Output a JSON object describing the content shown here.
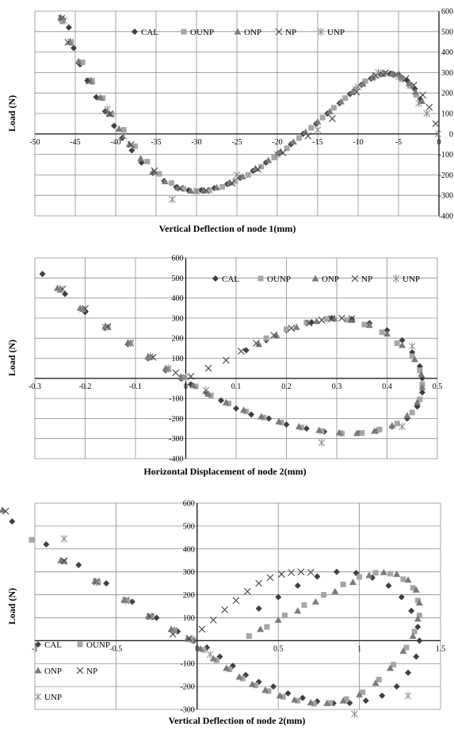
{
  "chart_data": [
    {
      "type": "scatter",
      "xlabel": "Vertical Deflection of node 1(mm)",
      "ylabel": "Load (N)",
      "xlim": [
        -50,
        0
      ],
      "ylim": [
        -400,
        600
      ],
      "x_ticks": [
        -50,
        -45,
        -40,
        -35,
        -30,
        -25,
        -20,
        -15,
        -10,
        -5,
        0
      ],
      "y_ticks": [
        -400,
        -300,
        -200,
        -100,
        0,
        100,
        200,
        300,
        400,
        500,
        600
      ],
      "grid": true,
      "legend_position": "top",
      "series": [
        {
          "name": "CAL",
          "marker": "diamond",
          "x": [
            -46.5,
            -45.8,
            -45.2,
            -44.4,
            -43.5,
            -42.4,
            -41.3,
            -40.2,
            -39.2,
            -38.0,
            -36.8,
            -35.4,
            -34.0,
            -32.5,
            -31.0,
            -29.4,
            -27.8,
            -26.2,
            -24.6,
            -23.0,
            -21.4,
            -19.9,
            -18.3,
            -16.8,
            -15.2,
            -13.8,
            -12.3,
            -11.0,
            -9.6,
            -8.4,
            -7.2,
            -6.0,
            -4.9,
            -3.9,
            -3.0,
            -2.3
          ],
          "y": [
            560,
            520,
            420,
            340,
            260,
            180,
            110,
            40,
            -20,
            -80,
            -140,
            -190,
            -230,
            -260,
            -275,
            -275,
            -265,
            -245,
            -215,
            -180,
            -140,
            -95,
            -50,
            0,
            50,
            100,
            150,
            195,
            240,
            270,
            290,
            295,
            285,
            260,
            220,
            170
          ]
        },
        {
          "name": "OUNP",
          "marker": "square",
          "x": [
            -46.6,
            -45.5,
            -44.1,
            -42.9,
            -41.6,
            -40.5,
            -39.0,
            -37.6,
            -36.1,
            -34.6,
            -33.1,
            -31.6,
            -30.0,
            -28.4,
            -26.8,
            -25.2,
            -23.6,
            -22.0,
            -20.4,
            -18.8,
            -17.3,
            -15.8,
            -14.4,
            -13.0,
            -11.6,
            -10.3,
            -9.1,
            -8.0,
            -6.8,
            -5.6,
            -4.6,
            -3.6,
            -2.8
          ],
          "y": [
            550,
            445,
            350,
            255,
            175,
            95,
            20,
            -60,
            -135,
            -195,
            -240,
            -268,
            -280,
            -275,
            -258,
            -230,
            -200,
            -160,
            -115,
            -70,
            -20,
            30,
            80,
            128,
            175,
            220,
            258,
            282,
            296,
            290,
            268,
            235,
            190
          ]
        },
        {
          "name": "ONP",
          "marker": "triangle",
          "x": [
            -46.8,
            -45.7,
            -44.6,
            -43.2,
            -41.9,
            -40.8,
            -39.6,
            -38.3,
            -36.9,
            -35.4,
            -33.9,
            -32.3,
            -30.7,
            -29.1,
            -27.5,
            -25.9,
            -24.3,
            -22.7,
            -21.1,
            -19.6,
            -18.0,
            -16.5,
            -15.0,
            -13.5,
            -12.1,
            -10.7,
            -9.4,
            -8.2,
            -7.0,
            -5.8,
            -4.7,
            -3.7,
            -2.9,
            -2.1
          ],
          "y": [
            570,
            450,
            355,
            260,
            178,
            100,
            25,
            -50,
            -120,
            -185,
            -232,
            -262,
            -278,
            -277,
            -262,
            -238,
            -208,
            -170,
            -128,
            -85,
            -38,
            10,
            60,
            110,
            158,
            205,
            245,
            275,
            292,
            295,
            278,
            248,
            205,
            160
          ]
        },
        {
          "name": "NP",
          "marker": "x",
          "x": [
            -46.7,
            -45.9,
            -43.3,
            -40.7,
            -38.1,
            -35.2,
            -32.0,
            -28.8,
            -25.6,
            -22.4,
            -19.3,
            -16.2,
            -13.2,
            -10.2,
            -7.8,
            -6.6,
            -5.3,
            -4.1,
            -3.1,
            -2.0,
            -1.2,
            -0.4
          ],
          "y": [
            565,
            448,
            258,
            98,
            -52,
            -180,
            -265,
            -276,
            -240,
            -172,
            -92,
            -10,
            75,
            205,
            285,
            298,
            290,
            270,
            238,
            190,
            130,
            50
          ]
        },
        {
          "name": "UNP",
          "marker": "asterisk",
          "x": [
            -46.4,
            -45.6,
            -43.0,
            -41.0,
            -39.0,
            -33.0,
            -30.0,
            -25.0,
            -20.0,
            -15.0,
            -10.0,
            -7.5,
            -5.0,
            -2.5,
            -1.5,
            -0.1
          ],
          "y": [
            555,
            450,
            260,
            120,
            -10,
            -320,
            -278,
            -200,
            -100,
            20,
            230,
            300,
            280,
            150,
            100,
            0
          ]
        }
      ]
    },
    {
      "type": "scatter",
      "xlabel": "Horizontal Displacement of node 2(mm)",
      "ylabel": "Load (N)",
      "xlim": [
        -0.3,
        0.5
      ],
      "ylim": [
        -400,
        600
      ],
      "x_ticks": [
        -0.3,
        -0.2,
        -0.1,
        0,
        0.1,
        0.2,
        0.3,
        0.4,
        0.5
      ],
      "y_ticks": [
        -400,
        -300,
        -200,
        -100,
        0,
        100,
        200,
        300,
        400,
        500,
        600
      ],
      "grid": true,
      "legend_position": "top",
      "series": [
        {
          "name": "CAL",
          "marker": "diamond",
          "x": [
            -0.285,
            -0.24,
            -0.2,
            -0.16,
            -0.115,
            -0.075,
            -0.04,
            -0.01,
            0.01,
            0.04,
            0.07,
            0.1,
            0.13,
            0.165,
            0.2,
            0.24,
            0.275,
            0.31,
            0.345,
            0.38,
            0.41,
            0.44,
            0.46,
            0.47,
            0.47,
            0.465,
            0.45,
            0.43,
            0.4,
            0.365,
            0.33,
            0.29,
            0.25,
            0.2,
            0.16,
            0.12
          ],
          "y": [
            520,
            420,
            330,
            250,
            170,
            100,
            40,
            0,
            -30,
            -70,
            -110,
            -150,
            -180,
            -200,
            -230,
            -250,
            -265,
            -273,
            -272,
            -262,
            -240,
            -200,
            -140,
            -70,
            0,
            60,
            130,
            190,
            240,
            275,
            295,
            300,
            280,
            240,
            190,
            140
          ]
        },
        {
          "name": "OUNP",
          "marker": "square",
          "x": [
            -0.25,
            -0.205,
            -0.155,
            -0.11,
            -0.07,
            -0.035,
            -0.005,
            0.02,
            0.05,
            0.085,
            0.12,
            0.155,
            0.19,
            0.23,
            0.27,
            0.31,
            0.35,
            0.385,
            0.42,
            0.45,
            0.465,
            0.47,
            0.465,
            0.45,
            0.42,
            0.39,
            0.355,
            0.32,
            0.28,
            0.24,
            0.2,
            0.16
          ],
          "y": [
            440,
            345,
            255,
            175,
            105,
            45,
            5,
            -40,
            -85,
            -125,
            -165,
            -195,
            -220,
            -245,
            -262,
            -275,
            -272,
            -255,
            -225,
            -170,
            -105,
            -30,
            40,
            110,
            175,
            230,
            268,
            292,
            296,
            278,
            245,
            200
          ]
        },
        {
          "name": "ONP",
          "marker": "triangle",
          "x": [
            -0.255,
            -0.21,
            -0.16,
            -0.115,
            -0.075,
            -0.04,
            -0.01,
            0.015,
            0.045,
            0.08,
            0.115,
            0.15,
            0.185,
            0.225,
            0.265,
            0.305,
            0.34,
            0.375,
            0.41,
            0.44,
            0.46,
            0.47,
            0.468,
            0.455,
            0.43,
            0.4,
            0.365,
            0.33,
            0.295,
            0.26,
            0.22,
            0.18,
            0.145
          ],
          "y": [
            450,
            350,
            260,
            178,
            108,
            50,
            8,
            -35,
            -78,
            -120,
            -158,
            -190,
            -215,
            -240,
            -258,
            -270,
            -273,
            -262,
            -235,
            -185,
            -120,
            -45,
            20,
            95,
            165,
            222,
            265,
            290,
            298,
            285,
            255,
            215,
            170
          ]
        },
        {
          "name": "NP",
          "marker": "x",
          "x": [
            -0.245,
            -0.2,
            -0.155,
            -0.11,
            -0.065,
            -0.02,
            0.01,
            0.045,
            0.08,
            0.11,
            0.14,
            0.175,
            0.21,
            0.245,
            0.27,
            0.29,
            0.31,
            0.33
          ],
          "y": [
            445,
            348,
            258,
            176,
            105,
            28,
            10,
            50,
            90,
            135,
            175,
            215,
            250,
            275,
            290,
            297,
            300,
            298
          ]
        },
        {
          "name": "UNP",
          "marker": "asterisk",
          "x": [
            -0.25,
            -0.205,
            -0.16,
            -0.11,
            -0.07,
            -0.035,
            0.0,
            0.04,
            0.27,
            0.43,
            0.45
          ],
          "y": [
            445,
            345,
            255,
            175,
            110,
            50,
            5,
            -60,
            -320,
            -240,
            160
          ]
        }
      ]
    },
    {
      "type": "scatter",
      "xlabel": "Vertical Deflection of node 2(mm)",
      "ylabel": "Load (N)",
      "xlim": [
        -1,
        1.5
      ],
      "ylim": [
        -300,
        600
      ],
      "x_ticks": [
        -1,
        -0.5,
        0,
        0.5,
        1,
        1.5
      ],
      "y_ticks": [
        -300,
        -200,
        -100,
        0,
        100,
        200,
        300,
        400,
        500,
        600
      ],
      "grid": true,
      "legend_position": "bottom-left",
      "series": [
        {
          "name": "CAL",
          "marker": "diamond",
          "x": [
            -1.14,
            -0.93,
            -0.73,
            -0.56,
            -0.4,
            -0.25,
            -0.12,
            -0.02,
            0.06,
            0.14,
            0.22,
            0.3,
            0.38,
            0.47,
            0.56,
            0.65,
            0.74,
            0.84,
            0.94,
            1.04,
            1.14,
            1.23,
            1.3,
            1.35,
            1.37,
            1.36,
            1.32,
            1.26,
            1.18,
            1.08,
            0.98,
            0.86,
            0.74,
            0.62,
            0.5,
            0.38
          ],
          "y": [
            520,
            420,
            330,
            250,
            170,
            100,
            40,
            0,
            -30,
            -70,
            -110,
            -150,
            -180,
            -200,
            -230,
            -250,
            -265,
            -273,
            -272,
            -262,
            -240,
            -200,
            -140,
            -70,
            0,
            60,
            130,
            190,
            240,
            275,
            295,
            300,
            280,
            240,
            190,
            140
          ]
        },
        {
          "name": "OUNP",
          "marker": "square",
          "x": [
            -1.02,
            -0.82,
            -0.61,
            -0.43,
            -0.28,
            -0.14,
            -0.04,
            0.04,
            0.12,
            0.2,
            0.28,
            0.36,
            0.44,
            0.53,
            0.62,
            0.72,
            0.82,
            0.92,
            1.02,
            1.12,
            1.21,
            1.29,
            1.34,
            1.37,
            1.36,
            1.33,
            1.27,
            1.19,
            1.1,
            1.0,
            0.9,
            0.78,
            0.66,
            0.54,
            0.43,
            0.32
          ],
          "y": [
            440,
            345,
            255,
            175,
            105,
            45,
            5,
            -40,
            -85,
            -125,
            -165,
            -195,
            -220,
            -245,
            -262,
            -275,
            -272,
            -255,
            -225,
            -170,
            -105,
            -30,
            40,
            110,
            175,
            230,
            268,
            292,
            296,
            278,
            245,
            200,
            155,
            110,
            60,
            20
          ]
        },
        {
          "name": "ONP",
          "marker": "triangle",
          "x": [
            -1.2,
            -0.84,
            -0.63,
            -0.45,
            -0.3,
            -0.16,
            -0.06,
            0.02,
            0.1,
            0.18,
            0.26,
            0.34,
            0.42,
            0.51,
            0.6,
            0.7,
            0.8,
            0.9,
            1.0,
            1.1,
            1.19,
            1.27,
            1.33,
            1.36,
            1.37,
            1.35,
            1.3,
            1.23,
            1.15,
            1.06,
            0.96,
            0.85,
            0.73,
            0.62,
            0.5,
            0.39
          ],
          "y": [
            570,
            350,
            260,
            178,
            108,
            50,
            8,
            -35,
            -78,
            -120,
            -158,
            -190,
            -215,
            -240,
            -258,
            -270,
            -273,
            -262,
            -235,
            -185,
            -120,
            -45,
            20,
            95,
            165,
            222,
            265,
            290,
            298,
            285,
            255,
            215,
            170,
            130,
            90,
            50
          ]
        },
        {
          "name": "NP",
          "marker": "x",
          "x": [
            -1.18,
            -0.82,
            -0.62,
            -0.44,
            -0.29,
            -0.15,
            -0.05,
            0.03,
            0.1,
            0.17,
            0.24,
            0.31,
            0.38,
            0.45,
            0.52,
            0.58,
            0.64,
            0.7
          ],
          "y": [
            565,
            348,
            258,
            176,
            105,
            28,
            10,
            50,
            90,
            135,
            175,
            215,
            250,
            275,
            290,
            297,
            300,
            298
          ]
        },
        {
          "name": "UNP",
          "marker": "asterisk",
          "x": [
            -0.82,
            -0.62,
            -0.44,
            -0.28,
            -0.14,
            -0.02,
            0.08,
            0.97,
            1.3
          ],
          "y": [
            445,
            255,
            175,
            105,
            45,
            5,
            -60,
            -320,
            -240
          ]
        }
      ]
    }
  ]
}
